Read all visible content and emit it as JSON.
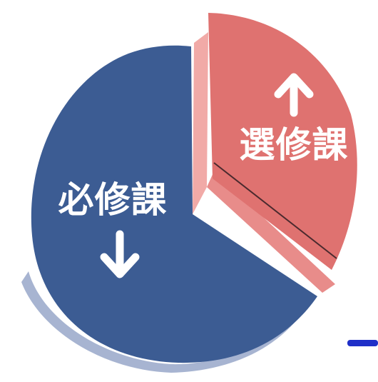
{
  "chart_data": {
    "type": "pie",
    "style": "3d-illustrated",
    "slices": [
      {
        "label": "必修課",
        "value": 67,
        "color": "#3c5c93",
        "direction": "down",
        "arrow_icon": "down-arrow-icon"
      },
      {
        "label": "選修課",
        "value": 33,
        "color": "#df7270",
        "direction": "up",
        "arrow_icon": "up-arrow-icon",
        "exploded": true
      }
    ]
  },
  "accent_line_color": "#1f2fc8"
}
